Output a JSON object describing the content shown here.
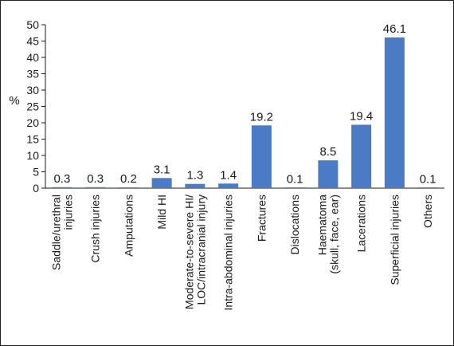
{
  "chart_data": {
    "type": "bar",
    "ylabel": "%",
    "ylim": [
      0,
      50
    ],
    "yticks": [
      0,
      5,
      10,
      15,
      20,
      25,
      30,
      35,
      40,
      45,
      50
    ],
    "ytick_labels": [
      "0",
      "5",
      "10",
      "15",
      "20",
      "25",
      "30",
      "35",
      "40",
      "45",
      "50"
    ],
    "grid": false,
    "bar_color": "#4a7bc4",
    "categories": [
      [
        "Saddle/urethral",
        "injuries"
      ],
      [
        "Crush injuries"
      ],
      [
        "Amputations"
      ],
      [
        "Mild HI"
      ],
      [
        "Moderate-to-severe HI/",
        "LOC/intracranial injury"
      ],
      [
        "Intra-abdominal injuries"
      ],
      [
        "Fractures"
      ],
      [
        "Dislocations"
      ],
      [
        "Haematoma",
        "(skull, face, ear)"
      ],
      [
        "Lacerations"
      ],
      [
        "Superficial injuries"
      ],
      [
        "Others"
      ]
    ],
    "values": [
      0.3,
      0.3,
      0.2,
      3.1,
      1.3,
      1.4,
      19.2,
      0.1,
      8.5,
      19.4,
      46.1,
      0.1
    ],
    "value_labels": [
      "0.3",
      "0.3",
      "0.2",
      "3.1",
      "1.3",
      "1.4",
      "19.2",
      "0.1",
      "8.5",
      "19.4",
      "46.1",
      "0.1"
    ]
  }
}
